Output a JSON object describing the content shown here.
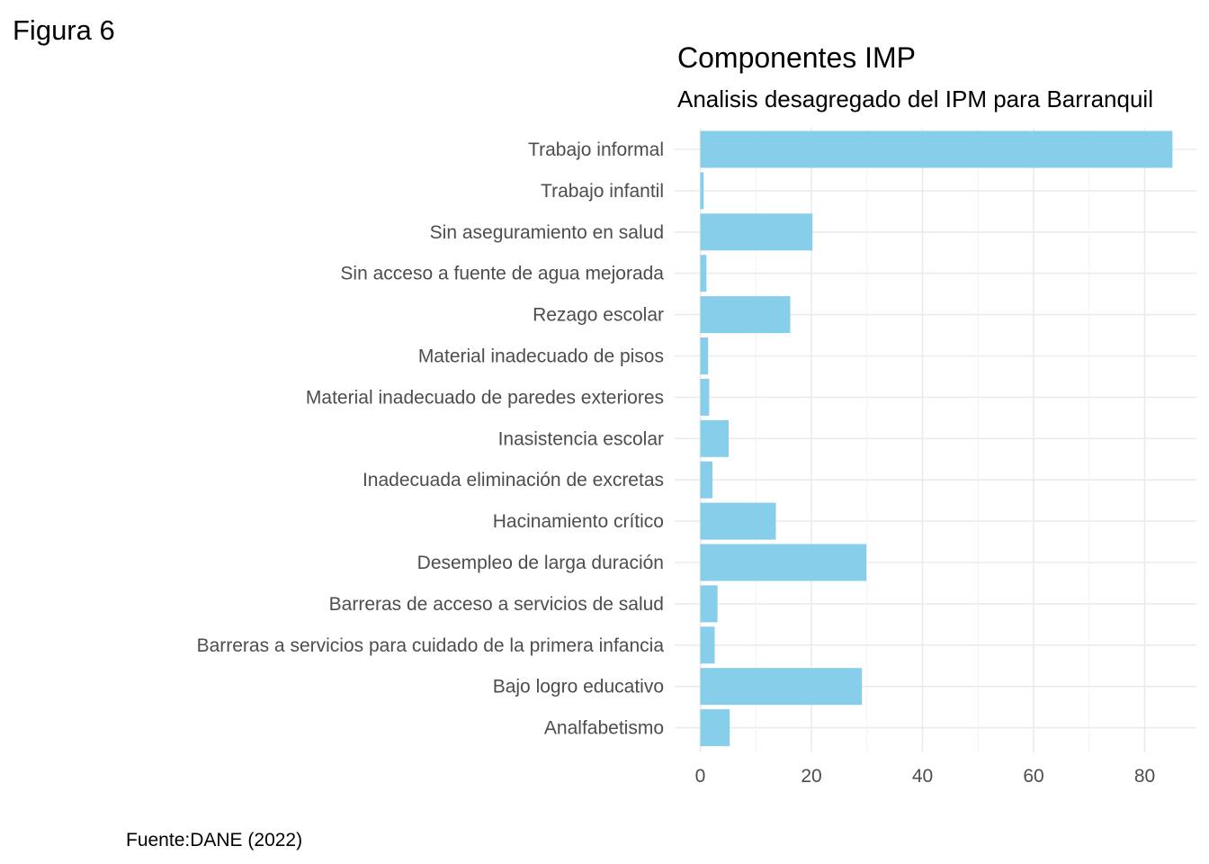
{
  "figure_label": "Figura 6",
  "caption": "Fuente:DANE (2022)",
  "chart_data": {
    "type": "bar",
    "orientation": "horizontal",
    "title": "Componentes IMP",
    "subtitle": "Analisis desagregado del IPM para Barranquil",
    "xlabel": "",
    "ylabel": "",
    "categories": [
      "Trabajo informal",
      "Trabajo infantil",
      "Sin aseguramiento en salud",
      "Sin acceso a fuente de agua mejorada",
      "Rezago escolar",
      "Material inadecuado de pisos",
      "Material inadecuado de paredes exteriores",
      "Inasistencia escolar",
      "Inadecuada eliminación de excretas",
      "Hacinamiento crítico",
      "Desempleo de larga duración",
      "Barreras de acceso a servicios de salud",
      "Barreras a servicios para cuidado de la primera infancia",
      "Bajo logro educativo",
      "Analfabetismo"
    ],
    "values": [
      85.0,
      0.6,
      20.2,
      1.1,
      16.2,
      1.4,
      1.6,
      5.1,
      2.2,
      13.6,
      29.9,
      3.1,
      2.6,
      29.1,
      5.3
    ],
    "xlim": [
      0,
      89
    ],
    "xticks": [
      0,
      20,
      40,
      60,
      80
    ],
    "bar_color": "#87ceeb",
    "grid": true,
    "legend": "none"
  }
}
